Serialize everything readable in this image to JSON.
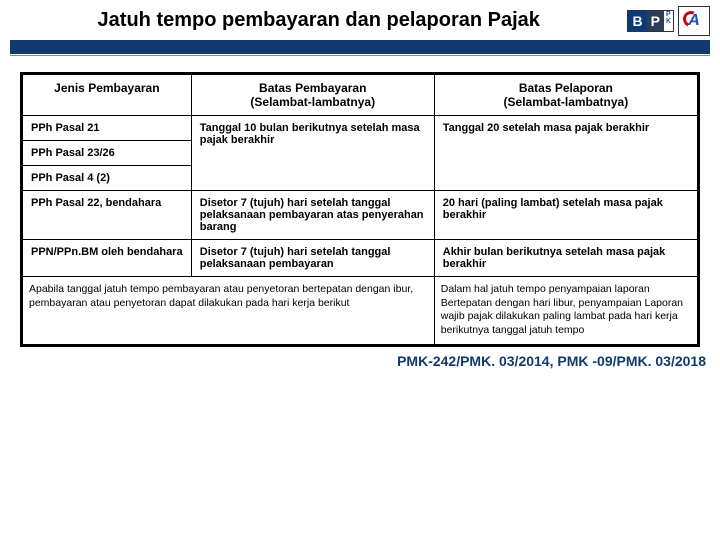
{
  "title": "Jatuh tempo pembayaran dan pelaporan Pajak",
  "headers": {
    "col1": "Jenis Pembayaran",
    "col2_l1": "Batas Pembayaran",
    "col2_l2": "(Selambat-lambatnya)",
    "col3_l1": "Batas Pelaporan",
    "col3_l2": "(Selambat-lambatnya)"
  },
  "rows": [
    {
      "c1": "PPh Pasal 21",
      "c2": "",
      "c3": ""
    },
    {
      "c1": "PPh Pasal 23/26",
      "c2": "Tanggal 10 bulan berikutnya setelah masa pajak berakhir",
      "c3": "Tanggal 20 setelah masa pajak berakhir"
    },
    {
      "c1": "PPh Pasal 4 (2)",
      "c2": "",
      "c3": ""
    },
    {
      "c1": "PPh Pasal 22, bendahara",
      "c2": "Disetor 7 (tujuh) hari setelah tanggal pelaksanaan pembayaran atas penyerahan barang",
      "c3": "20 hari (paling lambat) setelah masa pajak berakhir"
    },
    {
      "c1": "PPN/PPn.BM oleh bendahara",
      "c2": "Disetor 7 (tujuh) hari setelah tanggal pelaksanaan pembayaran",
      "c3": "Akhir bulan berikutnya setelah masa pajak berakhir"
    }
  ],
  "footnote": {
    "left": "Apabila tanggal jatuh tempo pembayaran atau penyetoran bertepatan dengan ibur, pembayaran atau penyetoran dapat dilakukan pada hari kerja berikut",
    "right": "Dalam hal jatuh tempo penyampaian laporan Bertepatan dengan hari libur, penyampaian Laporan wajib pajak dilakukan paling lambat pada hari kerja berikutnya tanggal jatuh tempo"
  },
  "reference": "PMK-242/PMK. 03/2014, PMK -09/PMK. 03/2018",
  "colors": {
    "header_bar": "#12396d",
    "ref_color": "#12396d"
  }
}
